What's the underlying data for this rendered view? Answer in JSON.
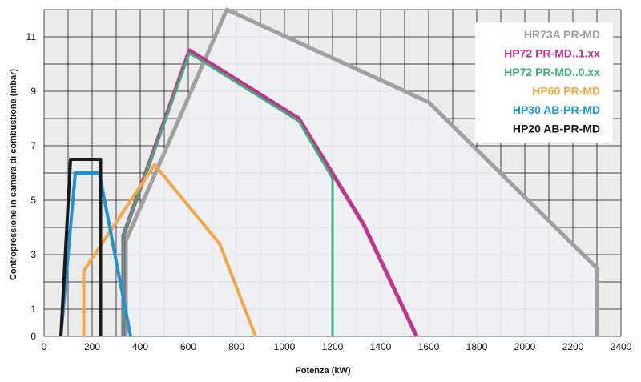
{
  "chart_data": {
    "type": "line",
    "xlabel": "Potenza (kW)",
    "ylabel": "Contropressione in camera di combustione (mbar)",
    "xlim": [
      0,
      2400
    ],
    "ylim": [
      0,
      12
    ],
    "x_ticks": [
      "0",
      "200",
      "400",
      "600",
      "800",
      "1000",
      "1200",
      "1400",
      "1600",
      "1800",
      "2000",
      "2200",
      "2400"
    ],
    "y_ticks": [
      "0",
      "1",
      "3",
      "5",
      "7",
      "9",
      "11"
    ],
    "grid": true,
    "legend_position": "top-right",
    "series": [
      {
        "name": "HR73A PR-MD",
        "color": "#a0a0a0",
        "points": [
          [
            340,
            0
          ],
          [
            340,
            3.5
          ],
          [
            760,
            12
          ],
          [
            1600,
            8.6
          ],
          [
            2300,
            2.5
          ],
          [
            2300,
            0
          ]
        ]
      },
      {
        "name": "HP72 PR-MD..1.xx",
        "color": "#c0348c",
        "points": [
          [
            330,
            0
          ],
          [
            330,
            3.7
          ],
          [
            605,
            10.5
          ],
          [
            1060,
            8.0
          ],
          [
            1330,
            4.1
          ],
          [
            1550,
            0
          ]
        ]
      },
      {
        "name": "HP72 PR-MD..0.xx",
        "color": "#3fae7a",
        "points": [
          [
            330,
            0
          ],
          [
            330,
            3.7
          ],
          [
            605,
            10.4
          ],
          [
            1060,
            7.9
          ],
          [
            1200,
            5.8
          ],
          [
            1200,
            0
          ]
        ]
      },
      {
        "name": "HP60 PR-MD",
        "color": "#f0a848",
        "points": [
          [
            165,
            0
          ],
          [
            165,
            2.4
          ],
          [
            460,
            6.3
          ],
          [
            730,
            3.4
          ],
          [
            880,
            0
          ]
        ]
      },
      {
        "name": "HP30 AB-PR-MD",
        "color": "#1f92cf",
        "points": [
          [
            70,
            0
          ],
          [
            130,
            6.0
          ],
          [
            230,
            6.0
          ],
          [
            360,
            0
          ]
        ]
      },
      {
        "name": "HP20 AB-PR-MD",
        "color": "#1a1a1a",
        "points": [
          [
            70,
            0
          ],
          [
            110,
            6.5
          ],
          [
            235,
            6.5
          ],
          [
            235,
            0
          ]
        ]
      }
    ]
  }
}
